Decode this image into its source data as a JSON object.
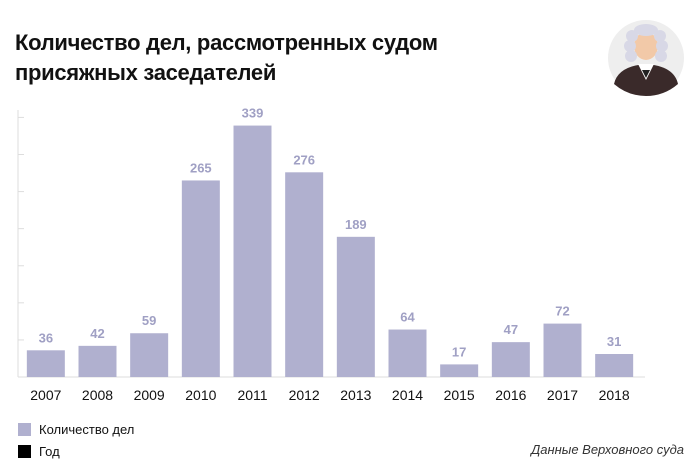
{
  "title": "Количество дел, рассмотренных судом присяжных заседателей",
  "source": "Данные Верховного суда",
  "illustration": "judge-in-wig-icon",
  "chart_data": {
    "type": "bar",
    "categories": [
      "2007",
      "2008",
      "2009",
      "2010",
      "2011",
      "2012",
      "2013",
      "2014",
      "2015",
      "2016",
      "2017",
      "2018"
    ],
    "series": [
      {
        "name": "Количество дел",
        "values": [
          36,
          42,
          59,
          265,
          339,
          276,
          189,
          64,
          17,
          47,
          72,
          31
        ]
      }
    ],
    "data_labels": [
      "36",
      "42",
      "59",
      "265",
      "339",
      "276",
      "189",
      "64",
      "17",
      "47",
      "72",
      "31"
    ],
    "legend": [
      {
        "label": "Количество дел",
        "color": "#b0b0cf"
      },
      {
        "label": "Год",
        "color": "#000000"
      }
    ],
    "legend_position": "bottom-left",
    "ylim": [
      0,
      360
    ],
    "grid": false,
    "colors": {
      "bar": "#b0b0cf",
      "label": "#a0a0c4",
      "axis": "#dddddd"
    }
  }
}
